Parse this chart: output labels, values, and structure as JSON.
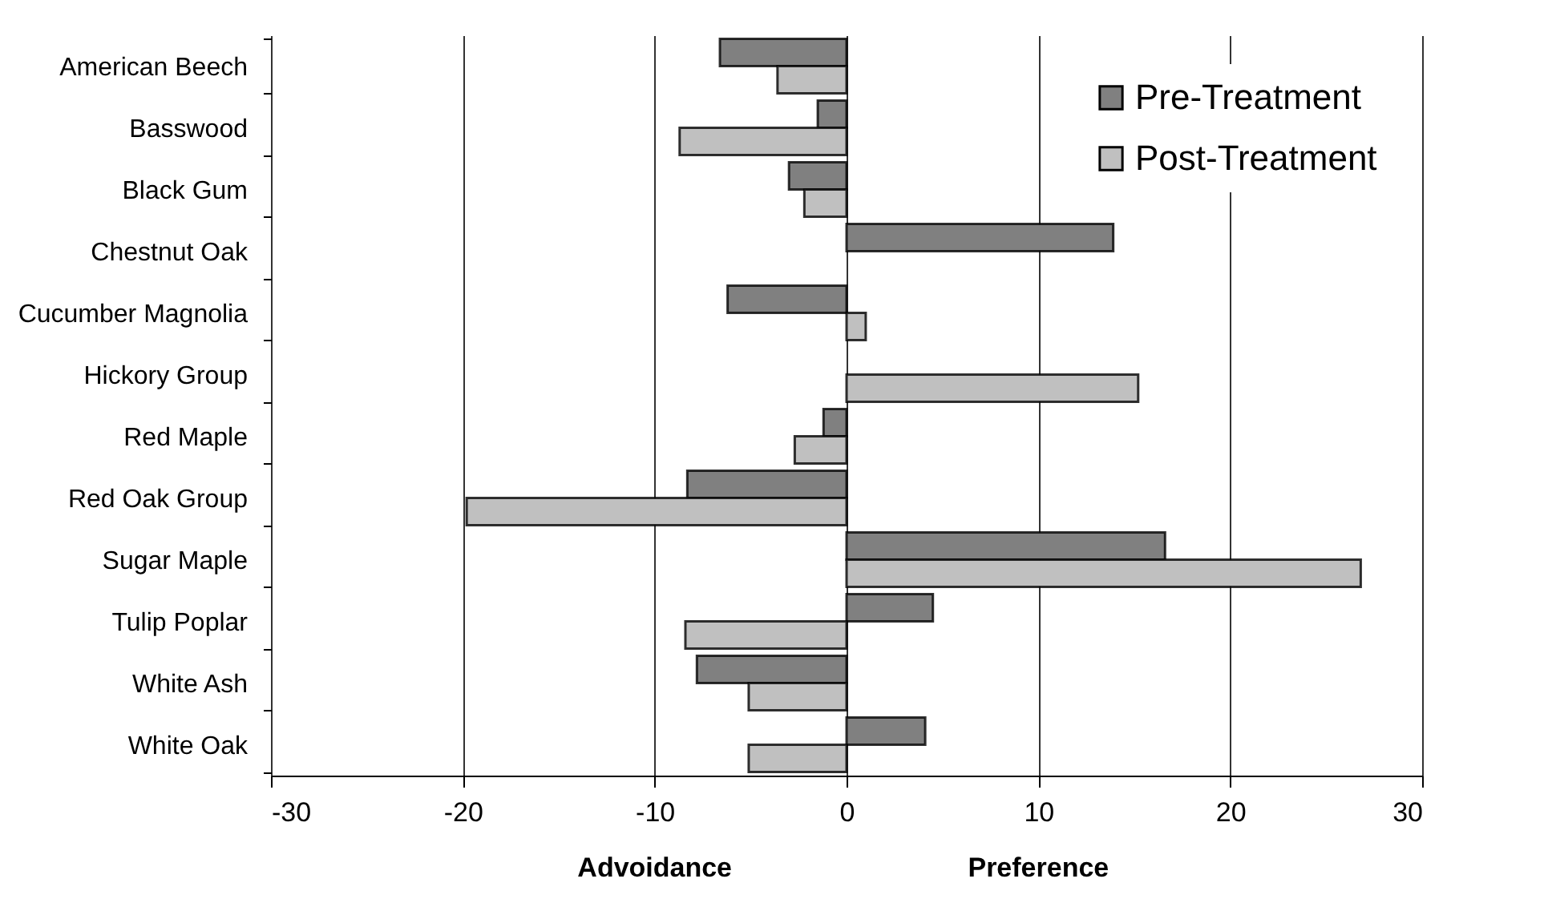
{
  "chart_data": {
    "type": "bar",
    "orientation": "horizontal",
    "categories": [
      "American Beech",
      "Basswood",
      "Black Gum",
      "Chestnut Oak",
      "Cucumber Magnolia",
      "Hickory Group",
      "Red Maple",
      "Red Oak Group",
      "Sugar Maple",
      "Tulip Poplar",
      "White Ash",
      "White Oak"
    ],
    "series": [
      {
        "name": "Pre-Treatment",
        "color": "#808080",
        "values": [
          -6.6,
          -1.5,
          -3.0,
          13.9,
          -6.2,
          null,
          -1.2,
          -8.3,
          16.6,
          4.5,
          -7.8,
          4.1
        ]
      },
      {
        "name": "Post-Treatment",
        "color": "#c0c0c0",
        "values": [
          -3.6,
          -8.7,
          -2.2,
          null,
          1.0,
          15.2,
          -2.7,
          -19.8,
          26.8,
          -8.4,
          -5.1,
          -5.1
        ]
      }
    ],
    "xlim": [
      -30,
      30
    ],
    "xticks": [
      -30,
      -20,
      -10,
      0,
      10,
      20,
      30
    ],
    "annotations": [
      "Advoidance",
      "Preference"
    ],
    "grid": "x",
    "legend": "top right"
  }
}
